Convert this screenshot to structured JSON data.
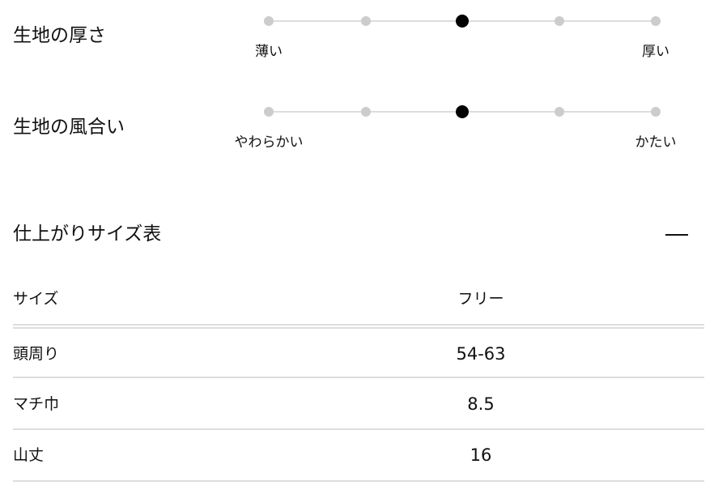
{
  "ratings": [
    {
      "title": "生地の厚さ",
      "min_label": "薄い",
      "max_label": "厚い",
      "steps": 5,
      "selected": 3
    },
    {
      "title": "生地の風合い",
      "min_label": "やわらかい",
      "max_label": "かたい",
      "steps": 5,
      "selected": 3
    }
  ],
  "size_table": {
    "title": "仕上がりサイズ表",
    "toggle_icon": "minus-icon",
    "header": {
      "label": "サイズ",
      "value": "フリー"
    },
    "rows": [
      {
        "label": "頭周り",
        "value": "54-63"
      },
      {
        "label": "マチ巾",
        "value": "8.5"
      },
      {
        "label": "山丈",
        "value": "16"
      }
    ]
  }
}
